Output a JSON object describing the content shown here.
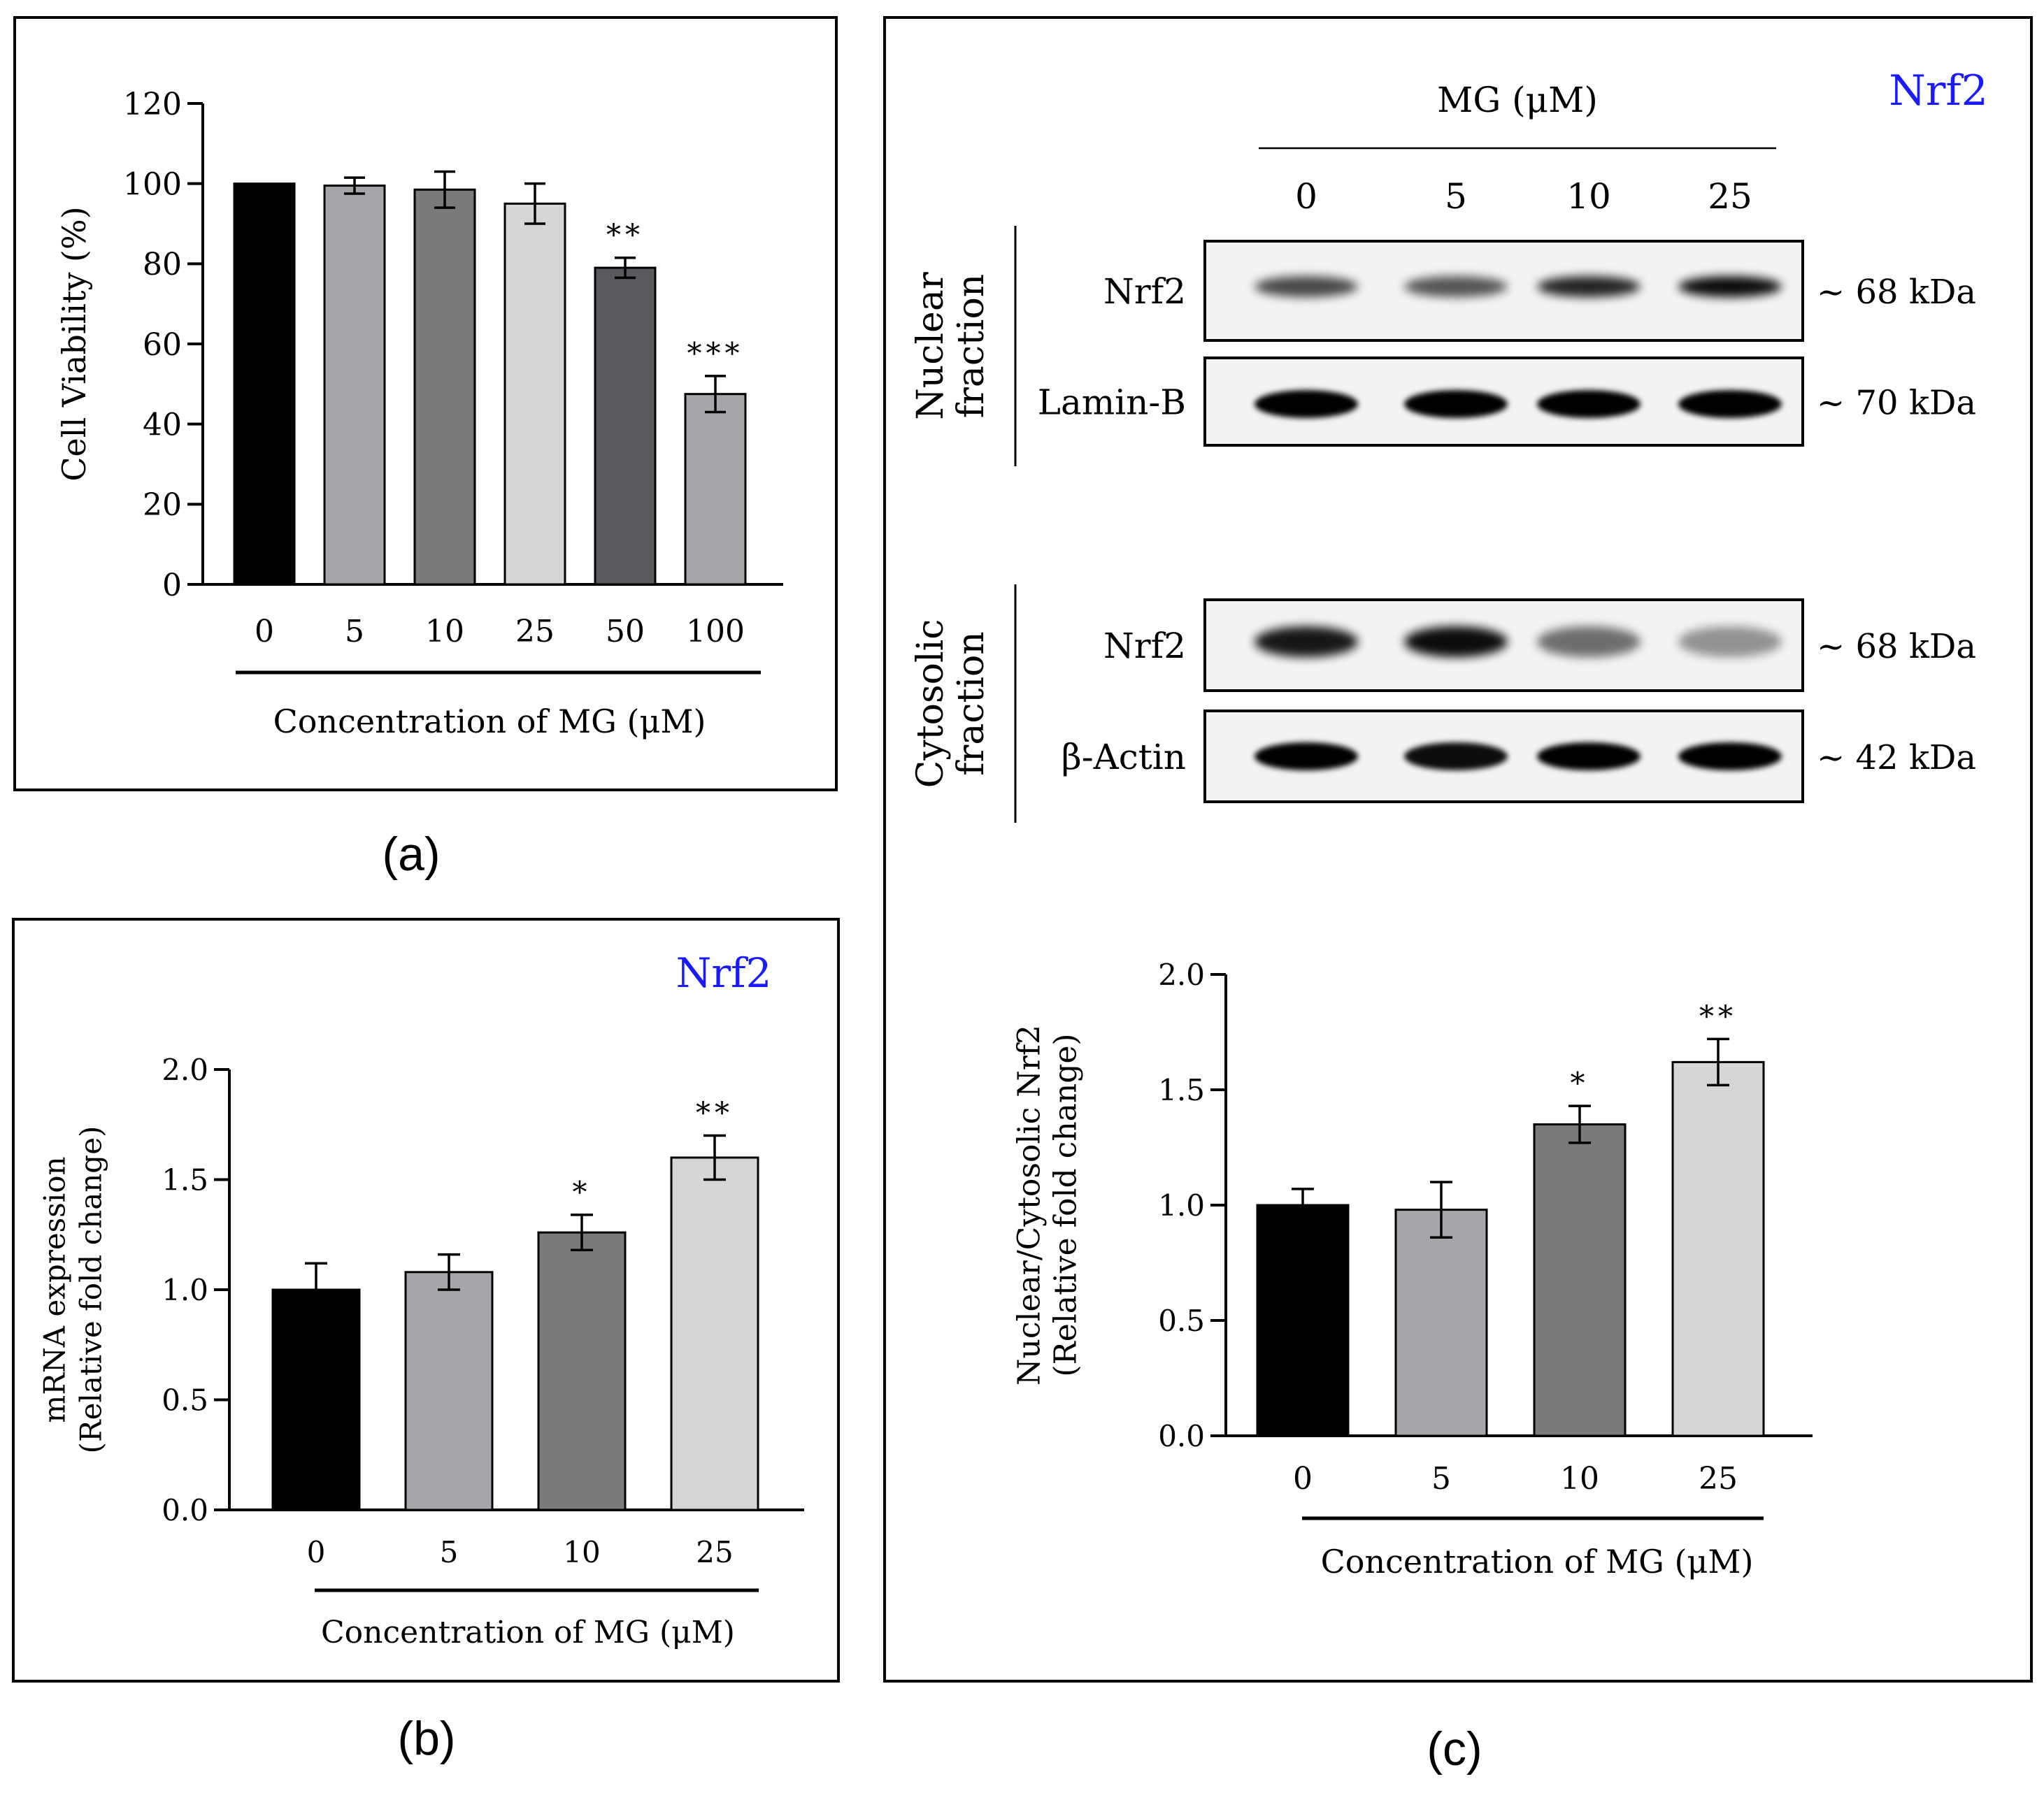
{
  "colors": {
    "black": "#000000",
    "dark_gray": "#5a5a5e",
    "mid_gray": "#7a7a7c",
    "light_gray": "#a6a5aa",
    "pale_gray": "#d6d6d6",
    "blue": "#1a1aff"
  },
  "panel_labels": {
    "a": "(a)",
    "b": "(b)",
    "c": "(c)"
  },
  "chart_data": [
    {
      "id": "a",
      "type": "bar",
      "title": "",
      "xlabel": "Concentration of MG (μM)",
      "ylabel": "Cell Viability (%)",
      "ylim": [
        0,
        120
      ],
      "yticks": [
        {
          "v": 0,
          "l": "0"
        },
        {
          "v": 20,
          "l": "20"
        },
        {
          "v": 40,
          "l": "40"
        },
        {
          "v": 60,
          "l": "60"
        },
        {
          "v": 80,
          "l": "80"
        },
        {
          "v": 100,
          "l": "100"
        },
        {
          "v": 120,
          "l": "120"
        }
      ],
      "categories": [
        "0",
        "5",
        "10",
        "25",
        "50",
        "100"
      ],
      "values": [
        100,
        99.5,
        98.5,
        95,
        79,
        47.5
      ],
      "errors": [
        0,
        2,
        4.5,
        5,
        2.5,
        4.5
      ],
      "significance": [
        "",
        "",
        "",
        "",
        "**",
        "***"
      ],
      "bar_colors": [
        "#000000",
        "#a6a5aa",
        "#7a7a7c",
        "#d6d6d6",
        "#5a5a5e",
        "#a6a5aa"
      ]
    },
    {
      "id": "b",
      "type": "bar",
      "title": "Nrf2",
      "xlabel": "Concentration of MG (μM)",
      "ylabel": [
        "mRNA expression",
        "(Relative fold change)"
      ],
      "ylim": [
        0,
        2.0
      ],
      "yticks": [
        {
          "v": 0,
          "l": "0.0"
        },
        {
          "v": 0.5,
          "l": "0.5"
        },
        {
          "v": 1.0,
          "l": "1.0"
        },
        {
          "v": 1.5,
          "l": "1.5"
        },
        {
          "v": 2.0,
          "l": "2.0"
        }
      ],
      "categories": [
        "0",
        "5",
        "10",
        "25"
      ],
      "values": [
        1.0,
        1.08,
        1.26,
        1.6
      ],
      "errors": [
        0.12,
        0.08,
        0.08,
        0.1
      ],
      "significance": [
        "",
        "",
        "*",
        "**"
      ],
      "bar_colors": [
        "#000000",
        "#a6a5aa",
        "#7a7a7c",
        "#d6d6d6"
      ]
    },
    {
      "id": "c",
      "type": "bar",
      "title": "",
      "xlabel": "Concentration of MG (μM)",
      "ylabel": [
        "Nuclear/Cytosolic Nrf2",
        "(Relative fold change)"
      ],
      "ylim": [
        0,
        2.0
      ],
      "yticks": [
        {
          "v": 0,
          "l": "0.0"
        },
        {
          "v": 0.5,
          "l": "0.5"
        },
        {
          "v": 1.0,
          "l": "1.0"
        },
        {
          "v": 1.5,
          "l": "1.5"
        },
        {
          "v": 2.0,
          "l": "2.0"
        }
      ],
      "categories": [
        "0",
        "5",
        "10",
        "25"
      ],
      "values": [
        1.0,
        0.98,
        1.35,
        1.62
      ],
      "errors": [
        0.07,
        0.12,
        0.08,
        0.1
      ],
      "significance": [
        "",
        "",
        "*",
        "**"
      ],
      "bar_colors": [
        "#000000",
        "#a6a5aa",
        "#7a7a7c",
        "#d6d6d6"
      ]
    }
  ],
  "western_blot": {
    "title": "Nrf2",
    "header": "MG (μM)",
    "lanes": [
      "0",
      "5",
      "10",
      "25"
    ],
    "sections": [
      {
        "group": [
          "Nuclear",
          "fraction"
        ],
        "rows": [
          {
            "protein": "Nrf2",
            "size": "~ 68 kDa"
          },
          {
            "protein": "Lamin-B",
            "size": "~ 70 kDa"
          }
        ]
      },
      {
        "group": [
          "Cytosolic",
          "fraction"
        ],
        "rows": [
          {
            "protein": "Nrf2",
            "size": "~ 68 kDa"
          },
          {
            "protein": "β-Actin",
            "size": "~ 42 kDa"
          }
        ]
      }
    ]
  }
}
